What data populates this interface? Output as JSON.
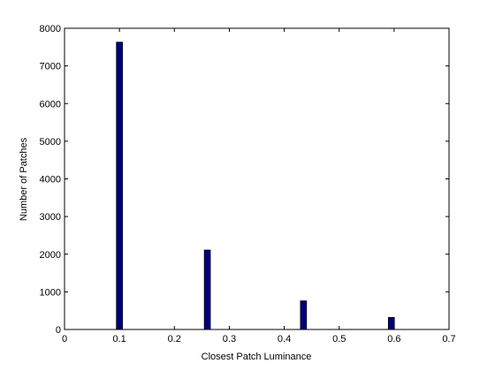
{
  "chart_data": {
    "type": "bar",
    "title": "",
    "xlabel": "Closest Patch Luminance",
    "ylabel": "Number of Patches",
    "xlim": [
      0,
      0.7
    ],
    "ylim": [
      0,
      8000
    ],
    "xticks": [
      0,
      0.1,
      0.2,
      0.3,
      0.4,
      0.5,
      0.6,
      0.7
    ],
    "xtick_labels": [
      "0",
      "0.1",
      "0.2",
      "0.3",
      "0.4",
      "0.5",
      "0.6",
      "0.7"
    ],
    "yticks": [
      0,
      1000,
      2000,
      3000,
      4000,
      5000,
      6000,
      7000,
      8000
    ],
    "ytick_labels": [
      "0",
      "1000",
      "2000",
      "3000",
      "4000",
      "5000",
      "6000",
      "7000",
      "8000"
    ],
    "x": [
      0.1,
      0.26,
      0.435,
      0.595
    ],
    "values": [
      7630,
      2110,
      760,
      320
    ],
    "bar_width": 0.011,
    "bar_color": "#000080",
    "bar_edge_color": "#000000",
    "grid": false,
    "legend": "none"
  }
}
